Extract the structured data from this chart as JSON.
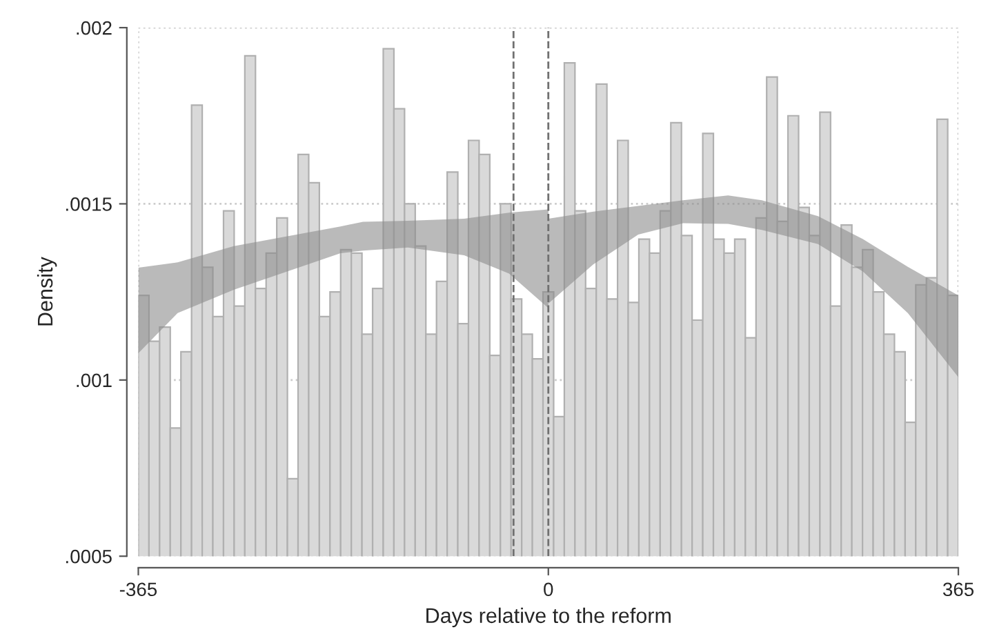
{
  "chart_data": {
    "type": "histogram",
    "xlabel": "Days relative to the reform",
    "ylabel": "Density",
    "bins": [
      -365,
      -355.52,
      -346.04,
      -336.56,
      -327.08,
      -317.6,
      -308.12,
      -298.64,
      -289.16,
      -279.68,
      -270.19,
      -260.71,
      -251.23,
      -241.75,
      -232.27,
      -222.79,
      -213.31,
      -203.83,
      -194.35,
      -184.87,
      -175.39,
      -165.91,
      -156.43,
      -146.95,
      -137.47,
      -127.99,
      -118.51,
      -109.03,
      -99.55,
      -90.06,
      -80.58,
      -71.1,
      -61.62,
      -52.14,
      -42.66,
      -33.18,
      -23.7,
      -14.22,
      -4.74,
      4.74,
      14.22,
      23.7,
      33.18,
      42.66,
      52.14,
      61.62,
      71.1,
      80.58,
      90.06,
      99.55,
      109.03,
      118.51,
      127.99,
      137.47,
      146.95,
      156.43,
      165.91,
      175.39,
      184.87,
      194.35,
      203.83,
      213.31,
      222.79,
      232.27,
      241.75,
      251.23,
      260.71,
      270.19,
      279.68,
      289.16,
      298.64,
      308.12,
      317.6,
      327.08,
      336.56,
      346.04,
      355.52,
      365
    ],
    "values": [
      0.00124,
      0.00111,
      0.00115,
      0.000864,
      0.00108,
      0.00178,
      0.00132,
      0.00118,
      0.00148,
      0.00121,
      0.00192,
      0.00126,
      0.00136,
      0.00146,
      0.00072,
      0.00164,
      0.00156,
      0.00118,
      0.00125,
      0.00137,
      0.00136,
      0.00113,
      0.00126,
      0.00194,
      0.00177,
      0.0015,
      0.00138,
      0.00113,
      0.00128,
      0.00159,
      0.00116,
      0.00168,
      0.00164,
      0.00107,
      0.0015,
      0.00123,
      0.00113,
      0.00106,
      0.00125,
      0.000896,
      0.0019,
      0.00148,
      0.00126,
      0.00184,
      0.00123,
      0.00168,
      0.00122,
      0.0014,
      0.00136,
      0.00148,
      0.00173,
      0.00141,
      0.00117,
      0.0017,
      0.0014,
      0.00136,
      0.0014,
      0.00112,
      0.00146,
      0.00186,
      0.00145,
      0.00175,
      0.00149,
      0.00141,
      0.00176,
      0.00121,
      0.00144,
      0.00132,
      0.00137,
      0.00125,
      0.00113,
      0.00108,
      0.00088,
      0.00127,
      0.00129,
      0.00174,
      0.00124
    ],
    "color": "#d9d9d9",
    "series": [
      {
        "type": "area",
        "color": "#8c8c8c",
        "x": [
          -365,
          -330,
          -280,
          -185,
          -165,
          -125,
          -75,
          -35,
          0
        ],
        "values": [
          null,
          null,
          null,
          null,
          null,
          null,
          null,
          null,
          null
        ],
        "lower": [
          0.001076,
          0.00119,
          0.001256,
          0.00136,
          0.001367,
          0.001376,
          0.001354,
          0.001302,
          0.001204
        ],
        "upper": [
          0.001319,
          0.001334,
          0.00138,
          0.001436,
          0.001449,
          0.001452,
          0.001458,
          0.001475,
          0.001484
        ]
      },
      {
        "type": "area",
        "color": "#8c8c8c",
        "x": [
          0,
          40,
          80,
          120,
          160,
          190,
          240,
          280,
          320,
          365
        ],
        "values": [
          null,
          null,
          null,
          null,
          null,
          null,
          null,
          null,
          null,
          null
        ],
        "lower": [
          0.001217,
          0.001328,
          0.001413,
          0.001445,
          0.001443,
          0.001426,
          0.001386,
          0.001308,
          0.00119,
          0.001008
        ],
        "upper": [
          0.001458,
          0.001478,
          0.001494,
          0.00151,
          0.001524,
          0.00151,
          0.001465,
          0.0014,
          0.001321,
          0.00124
        ]
      }
    ],
    "ref_lines": [
      {
        "axis": "x",
        "value": -31,
        "color": "#707070",
        "line_style": "dashed"
      },
      {
        "axis": "x",
        "value": 0,
        "color": "#707070",
        "line_style": "dashed"
      }
    ],
    "xlim": [
      -365,
      365
    ],
    "xticks": [
      -365,
      0,
      365
    ],
    "ylim": [
      0.0005,
      0.002
    ],
    "yticks": [
      {
        "value": 0.0005,
        "label": ".0005"
      },
      {
        "value": 0.001,
        "label": ".001"
      },
      {
        "value": 0.0015,
        "label": ".0015"
      },
      {
        "value": 0.002,
        "label": ".002"
      }
    ],
    "grid": true
  }
}
